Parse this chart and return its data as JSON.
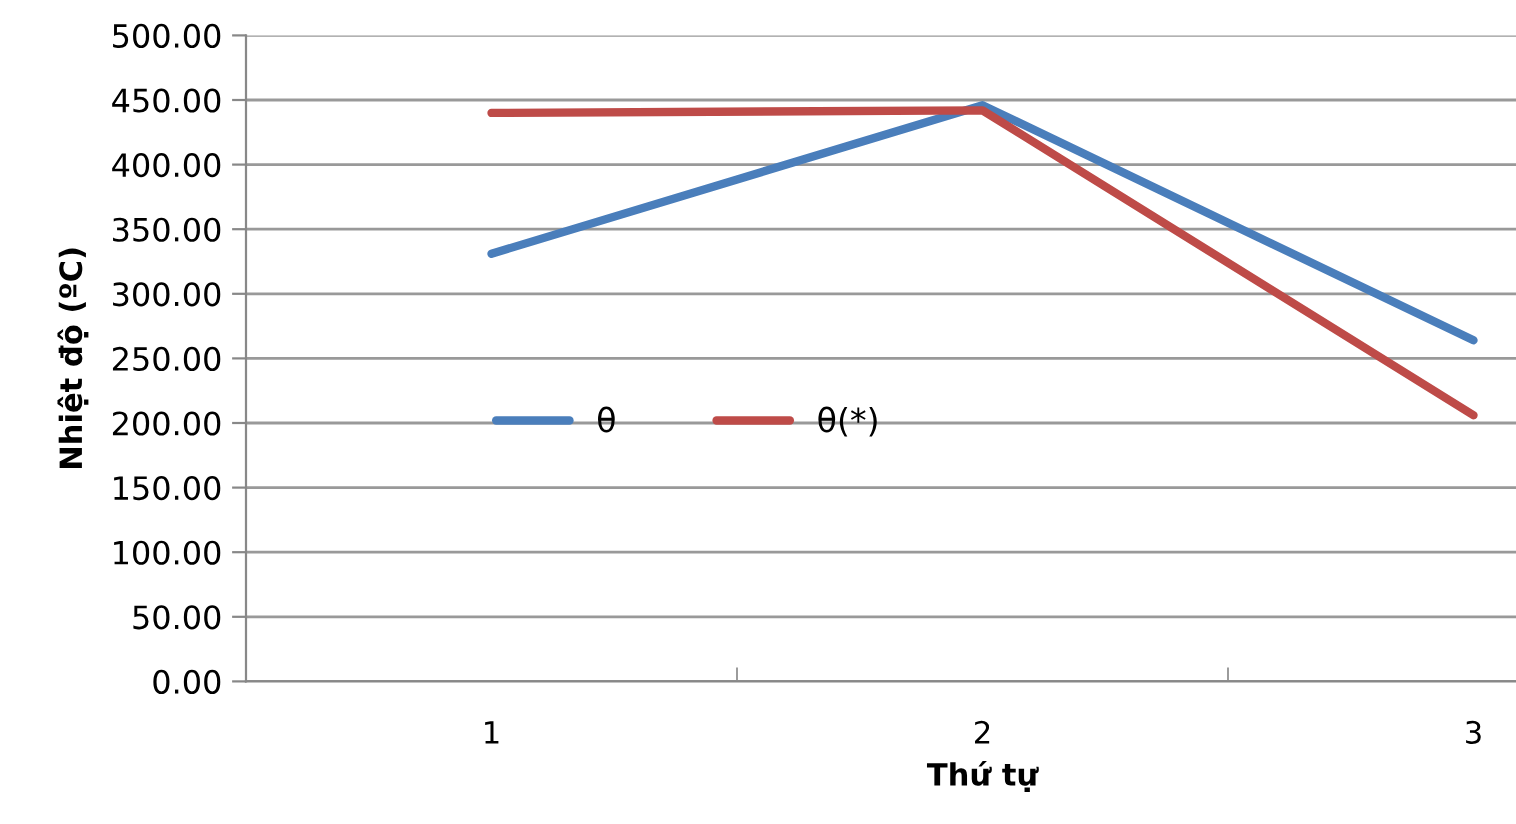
{
  "chart_data": {
    "type": "line",
    "xlabel": "Thứ tự",
    "ylabel": "Nhiệt độ (ºC)",
    "categories": [
      "1",
      "2",
      "3"
    ],
    "series": [
      {
        "name": "θ",
        "color": "#4a7ebb",
        "values": [
          331,
          446,
          264
        ]
      },
      {
        "name": "θ(*)",
        "color": "#be4b48",
        "values": [
          440,
          442,
          206
        ]
      }
    ],
    "ylim": [
      0,
      500
    ],
    "yticks": [
      {
        "value": 0,
        "label": "0.00"
      },
      {
        "value": 50,
        "label": "50.00"
      },
      {
        "value": 100,
        "label": "100.00"
      },
      {
        "value": 150,
        "label": "150.00"
      },
      {
        "value": 200,
        "label": "200.00"
      },
      {
        "value": 250,
        "label": "250.00"
      },
      {
        "value": 300,
        "label": "300.00"
      },
      {
        "value": 350,
        "label": "350.00"
      },
      {
        "value": 400,
        "label": "400.00"
      },
      {
        "value": 450,
        "label": "450.00"
      },
      {
        "value": 500,
        "label": "500.00"
      }
    ],
    "grid": "y",
    "legend": "center",
    "marker": "none",
    "line_style": "solid"
  }
}
